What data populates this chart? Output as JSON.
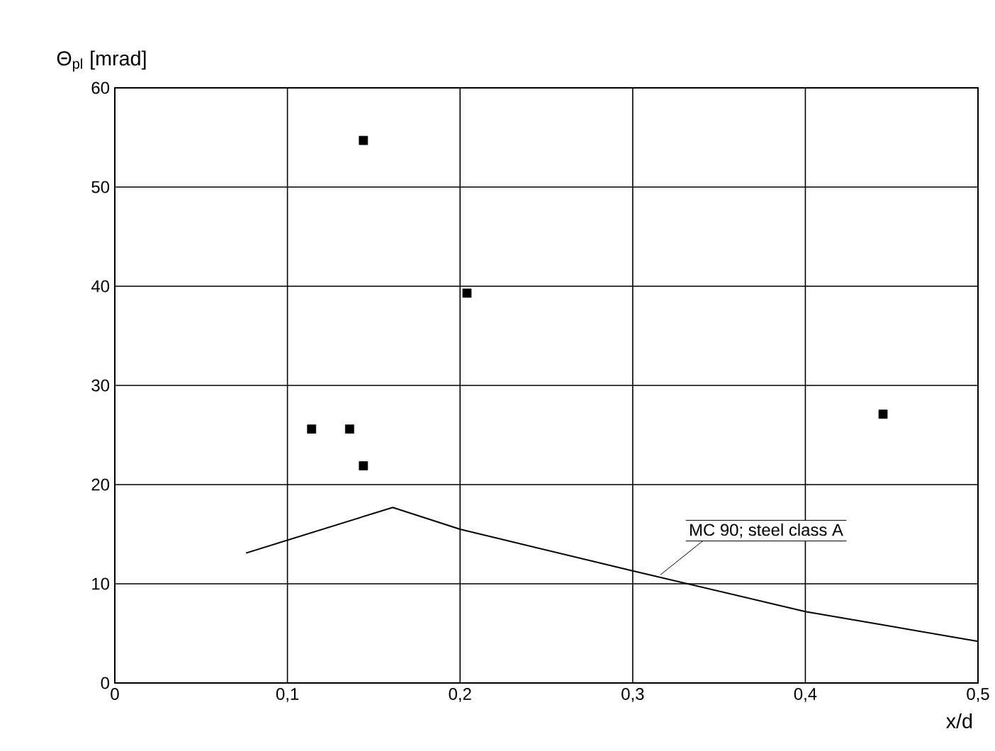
{
  "chart_data": {
    "type": "scatter",
    "ylabel": "Θ$_{pl}$ [mrad]",
    "xlabel": "x/d",
    "xlim": [
      0,
      0.5
    ],
    "ylim": [
      0,
      60
    ],
    "xticks": [
      {
        "value": 0,
        "label": "0"
      },
      {
        "value": 0.1,
        "label": "0,1"
      },
      {
        "value": 0.2,
        "label": "0,2"
      },
      {
        "value": 0.3,
        "label": "0,3"
      },
      {
        "value": 0.4,
        "label": "0,4"
      },
      {
        "value": 0.5,
        "label": "0,5"
      }
    ],
    "yticks": [
      0,
      10,
      20,
      30,
      40,
      50,
      60
    ],
    "grid": true,
    "series": [
      {
        "marker": "square",
        "color": "#000000",
        "x": [
          0.114,
          0.136,
          0.144,
          0.204,
          0.144,
          0.445
        ],
        "values": [
          25.6,
          25.6,
          21.9,
          39.3,
          54.7,
          27.1
        ]
      },
      {
        "type": "line",
        "marker": "none",
        "color": "#000000",
        "x": [
          0.076,
          0.161,
          0.2,
          0.3,
          0.4,
          0.5
        ],
        "values": [
          13.1,
          17.7,
          15.5,
          11.3,
          7.2,
          4.2
        ]
      }
    ],
    "annotations": [
      {
        "text": "MC 90; steel class A",
        "x": 0.316,
        "y": 10.9
      }
    ]
  }
}
